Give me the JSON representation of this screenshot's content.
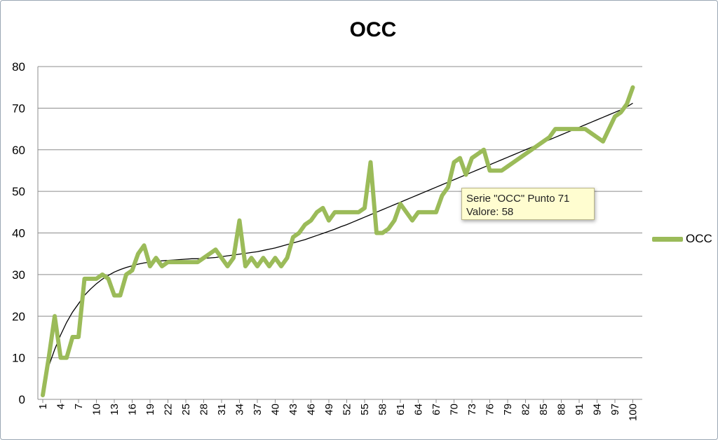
{
  "chart_data": {
    "type": "line",
    "title": "OCC",
    "xlabel": "",
    "ylabel": "",
    "ylim": [
      0,
      80
    ],
    "yticks": [
      "0",
      "10",
      "20",
      "30",
      "40",
      "50",
      "60",
      "70",
      "80"
    ],
    "xticks": [
      "1",
      "4",
      "7",
      "10",
      "13",
      "16",
      "19",
      "22",
      "25",
      "28",
      "31",
      "34",
      "37",
      "40",
      "43",
      "46",
      "49",
      "52",
      "55",
      "58",
      "61",
      "64",
      "67",
      "70",
      "73",
      "76",
      "79",
      "82",
      "85",
      "88",
      "91",
      "94",
      "97",
      "100"
    ],
    "grid": "horizontal",
    "legend_position": "right",
    "x": [
      1,
      2,
      3,
      4,
      5,
      6,
      7,
      8,
      9,
      10,
      11,
      12,
      13,
      14,
      15,
      16,
      17,
      18,
      19,
      20,
      21,
      22,
      23,
      24,
      25,
      26,
      27,
      28,
      29,
      30,
      31,
      32,
      33,
      34,
      35,
      36,
      37,
      38,
      39,
      40,
      41,
      42,
      43,
      44,
      45,
      46,
      47,
      48,
      49,
      50,
      51,
      52,
      53,
      54,
      55,
      56,
      57,
      58,
      59,
      60,
      61,
      62,
      63,
      64,
      65,
      66,
      67,
      68,
      69,
      70,
      71,
      72,
      73,
      74,
      75,
      76,
      77,
      78,
      79,
      80,
      81,
      82,
      83,
      84,
      85,
      86,
      87,
      88,
      89,
      90,
      91,
      92,
      93,
      94,
      95,
      96,
      97,
      98,
      99,
      100
    ],
    "series": [
      {
        "name": "OCC",
        "color": "#9bbb59",
        "values": [
          1,
          10,
          20,
          10,
          10,
          15,
          15,
          29,
          29,
          29,
          30,
          29,
          25,
          25,
          30,
          31,
          35,
          37,
          32,
          34,
          32,
          33,
          33,
          33,
          33,
          33,
          33,
          34,
          35,
          36,
          34,
          32,
          34,
          43,
          32,
          34,
          32,
          34,
          32,
          34,
          32,
          34,
          39,
          40,
          42,
          43,
          45,
          46,
          43,
          45,
          45,
          45,
          45,
          45,
          46,
          57,
          40,
          40,
          41,
          43,
          47,
          45,
          43,
          45,
          45,
          45,
          45,
          49,
          51,
          57,
          58,
          54,
          58,
          59,
          60,
          55,
          55,
          55,
          56,
          57,
          58,
          59,
          60,
          61,
          62,
          63,
          65,
          65,
          65,
          65,
          65,
          65,
          64,
          63,
          62,
          65,
          68,
          69,
          71,
          75
        ]
      }
    ],
    "trendline": {
      "type": "polynomial",
      "color": "#000000",
      "values": [
        3.5,
        8,
        12,
        15.5,
        18.5,
        21,
        23,
        25,
        26.5,
        27.8,
        28.9,
        29.8,
        30.6,
        31.2,
        31.7,
        32.1,
        32.5,
        32.8,
        33,
        33.2,
        33.3,
        33.4,
        33.5,
        33.6,
        33.7,
        33.8,
        33.8,
        33.9,
        34,
        34.1,
        34.3,
        34.5,
        34.7,
        34.9,
        35.1,
        35.3,
        35.5,
        35.8,
        36.1,
        36.4,
        36.8,
        37.2,
        37.6,
        38,
        38.4,
        38.9,
        39.4,
        39.9,
        40.4,
        40.9,
        41.5,
        42,
        42.6,
        43.2,
        43.8,
        44.4,
        45,
        45.6,
        46.2,
        46.8,
        47.4,
        48,
        48.6,
        49.2,
        49.8,
        50.4,
        51,
        51.6,
        52.2,
        52.8,
        53.4,
        54,
        54.6,
        55.2,
        55.8,
        56.4,
        57,
        57.6,
        58.2,
        58.8,
        59.4,
        60,
        60.6,
        61.2,
        61.8,
        62.4,
        63,
        63.6,
        64.2,
        64.8,
        65.4,
        66,
        66.6,
        67.2,
        67.8,
        68.4,
        69,
        69.6,
        70.3,
        71.2
      ]
    }
  },
  "tooltip": {
    "line1": "Serie \"OCC\" Punto 71",
    "line2": "Valore: 58"
  }
}
